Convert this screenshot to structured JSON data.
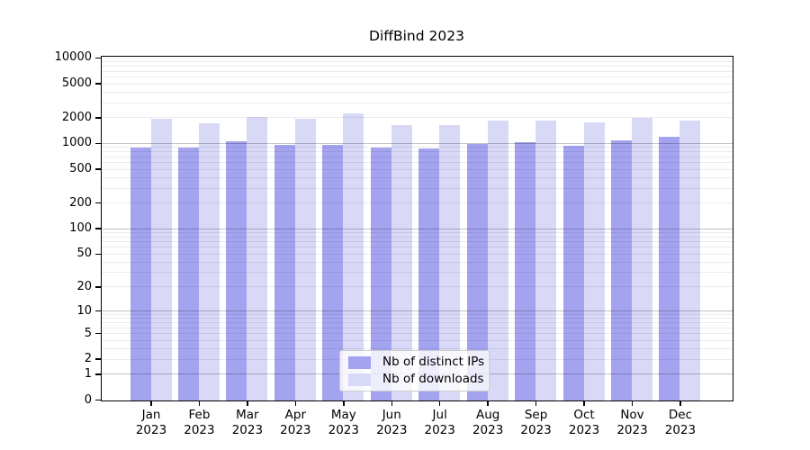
{
  "chart_data": {
    "type": "bar",
    "title": "DiffBind 2023",
    "categories": [
      "Jan 2023",
      "Feb 2023",
      "Mar 2023",
      "Apr 2023",
      "May 2023",
      "Jun 2023",
      "Jul 2023",
      "Aug 2023",
      "Sep 2023",
      "Oct 2023",
      "Nov 2023",
      "Dec 2023"
    ],
    "series": [
      {
        "name": "Nb of distinct IPs",
        "color": "#a3a3f0",
        "values": [
          910,
          915,
          1080,
          985,
          980,
          915,
          890,
          995,
          1050,
          950,
          1100,
          1210
        ]
      },
      {
        "name": "Nb of downloads",
        "color": "#d8d8f7",
        "values": [
          1970,
          1750,
          2070,
          1970,
          2280,
          1660,
          1660,
          1880,
          1870,
          1790,
          2020,
          1880
        ]
      }
    ],
    "yscale": "log1p",
    "ylim": [
      0,
      10000
    ],
    "yticks": [
      0,
      1,
      2,
      5,
      10,
      20,
      50,
      100,
      200,
      500,
      1000,
      2000,
      5000,
      10000
    ],
    "grid": {
      "orientation": "horizontal",
      "major_color": "#c2c2c2",
      "minor_color": "#ededed"
    },
    "legend": {
      "position": "lower center",
      "background": "#ffffff",
      "border_color": "#cccccc"
    },
    "axis_color": "#000000",
    "text_color": "#000000",
    "background_color": "#ffffff"
  }
}
